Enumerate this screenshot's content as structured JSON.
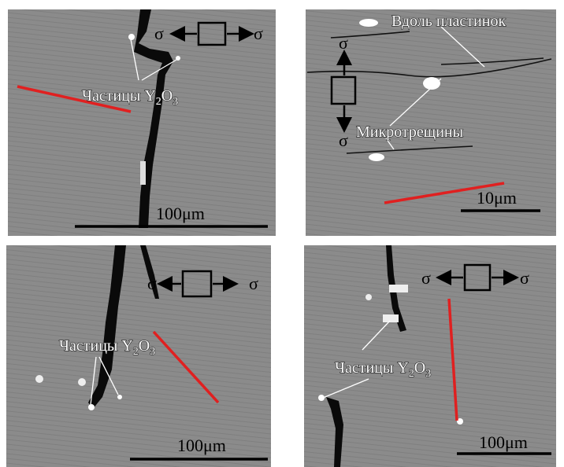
{
  "panels": [
    {
      "sigma_left": "σ",
      "sigma_right": "σ",
      "particles": {
        "a": "Частицы Y",
        "b": "2",
        "c": "O",
        "d": "3"
      },
      "scale": "100μm"
    },
    {
      "sigma_top": "σ",
      "sigma_bottom": "σ",
      "along": "Вдоль пластинок",
      "microcracks": "Микротрещины",
      "scale": "10μm"
    },
    {
      "sigma_left": "σ",
      "sigma_right": "σ",
      "particles": {
        "a": "Частицы Y",
        "b": "2",
        "c": "O",
        "d": "3"
      },
      "scale": "100μm"
    },
    {
      "sigma_left": "σ",
      "sigma_right": "σ",
      "particles": {
        "a": "Частицы Y",
        "b": "2",
        "c": "O",
        "d": "3"
      },
      "scale": "100μm"
    }
  ]
}
